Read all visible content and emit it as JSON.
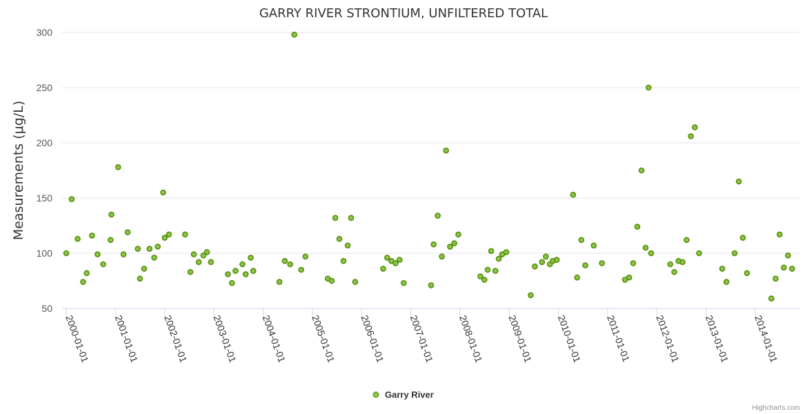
{
  "chart_data": {
    "type": "scatter",
    "title": "GARRY RIVER STRONTIUM, UNFILTERED TOTAL",
    "xlabel": "",
    "ylabel": "Measurements (μg/L)",
    "ylim": [
      50,
      300
    ],
    "yticks": [
      50,
      100,
      150,
      200,
      250,
      300
    ],
    "xticks": [
      "2000-01-01",
      "2001-01-01",
      "2002-01-01",
      "2003-01-01",
      "2004-01-01",
      "2005-01-01",
      "2006-01-01",
      "2007-01-01",
      "2008-01-01",
      "2009-01-01",
      "2010-01-01",
      "2011-01-01",
      "2012-01-01",
      "2013-01-01",
      "2014-01-01"
    ],
    "xlim": [
      "1999-12-01",
      "2014-11-30"
    ],
    "grid": "horizontal",
    "legend_position": "bottom-center",
    "series": [
      {
        "name": "Garry River",
        "color": "#8bc34a",
        "stroke": "#4f8a00",
        "points": [
          [
            "2000-01-01",
            100
          ],
          [
            "2000-02-10",
            149
          ],
          [
            "2000-03-25",
            113
          ],
          [
            "2000-05-05",
            74
          ],
          [
            "2000-06-01",
            82
          ],
          [
            "2000-07-10",
            116
          ],
          [
            "2000-08-20",
            99
          ],
          [
            "2000-10-01",
            90
          ],
          [
            "2000-11-25",
            112
          ],
          [
            "2000-12-01",
            135
          ],
          [
            "2001-01-20",
            178
          ],
          [
            "2001-03-01",
            99
          ],
          [
            "2001-04-01",
            119
          ],
          [
            "2001-06-15",
            104
          ],
          [
            "2001-07-01",
            77
          ],
          [
            "2001-08-01",
            86
          ],
          [
            "2001-09-10",
            104
          ],
          [
            "2001-10-15",
            96
          ],
          [
            "2001-11-10",
            106
          ],
          [
            "2001-12-20",
            155
          ],
          [
            "2002-01-01",
            114
          ],
          [
            "2002-02-01",
            117
          ],
          [
            "2002-06-01",
            117
          ],
          [
            "2002-07-10",
            83
          ],
          [
            "2002-08-05",
            99
          ],
          [
            "2002-09-10",
            92
          ],
          [
            "2002-10-15",
            98
          ],
          [
            "2002-11-10",
            101
          ],
          [
            "2002-12-10",
            92
          ],
          [
            "2003-04-15",
            81
          ],
          [
            "2003-05-15",
            73
          ],
          [
            "2003-06-10",
            84
          ],
          [
            "2003-08-01",
            90
          ],
          [
            "2003-08-25",
            81
          ],
          [
            "2003-10-01",
            96
          ],
          [
            "2003-10-20",
            84
          ],
          [
            "2004-05-01",
            74
          ],
          [
            "2004-06-10",
            93
          ],
          [
            "2004-07-20",
            90
          ],
          [
            "2004-08-20",
            298
          ],
          [
            "2004-10-10",
            85
          ],
          [
            "2004-11-10",
            97
          ],
          [
            "2005-04-25",
            77
          ],
          [
            "2005-05-25",
            75
          ],
          [
            "2005-06-20",
            132
          ],
          [
            "2005-07-20",
            113
          ],
          [
            "2005-08-20",
            93
          ],
          [
            "2005-09-20",
            107
          ],
          [
            "2005-10-15",
            132
          ],
          [
            "2005-11-15",
            74
          ],
          [
            "2006-06-10",
            86
          ],
          [
            "2006-07-10",
            96
          ],
          [
            "2006-08-10",
            93
          ],
          [
            "2006-09-10",
            91
          ],
          [
            "2006-10-10",
            94
          ],
          [
            "2006-11-10",
            73
          ],
          [
            "2007-06-01",
            71
          ],
          [
            "2007-06-20",
            108
          ],
          [
            "2007-07-20",
            134
          ],
          [
            "2007-08-20",
            97
          ],
          [
            "2007-09-20",
            193
          ],
          [
            "2007-10-20",
            106
          ],
          [
            "2007-11-20",
            109
          ],
          [
            "2007-12-20",
            117
          ],
          [
            "2008-06-01",
            79
          ],
          [
            "2008-07-01",
            76
          ],
          [
            "2008-07-25",
            85
          ],
          [
            "2008-08-20",
            102
          ],
          [
            "2008-09-20",
            84
          ],
          [
            "2008-10-15",
            95
          ],
          [
            "2008-11-10",
            99
          ],
          [
            "2008-12-10",
            101
          ],
          [
            "2009-06-10",
            62
          ],
          [
            "2009-07-10",
            88
          ],
          [
            "2009-09-01",
            92
          ],
          [
            "2009-09-30",
            97
          ],
          [
            "2009-10-30",
            90
          ],
          [
            "2009-11-20",
            93
          ],
          [
            "2009-12-20",
            94
          ],
          [
            "2010-04-20",
            153
          ],
          [
            "2010-05-20",
            78
          ],
          [
            "2010-06-20",
            112
          ],
          [
            "2010-07-20",
            89
          ],
          [
            "2010-09-20",
            107
          ],
          [
            "2010-11-20",
            91
          ],
          [
            "2011-05-10",
            76
          ],
          [
            "2011-06-10",
            78
          ],
          [
            "2011-07-10",
            91
          ],
          [
            "2011-08-10",
            124
          ],
          [
            "2011-09-10",
            175
          ],
          [
            "2011-10-10",
            105
          ],
          [
            "2011-11-01",
            250
          ],
          [
            "2011-11-20",
            100
          ],
          [
            "2012-04-10",
            90
          ],
          [
            "2012-05-10",
            83
          ],
          [
            "2012-06-10",
            93
          ],
          [
            "2012-07-10",
            92
          ],
          [
            "2012-08-10",
            112
          ],
          [
            "2012-09-10",
            206
          ],
          [
            "2012-10-10",
            214
          ],
          [
            "2012-11-10",
            100
          ],
          [
            "2013-05-01",
            86
          ],
          [
            "2013-06-01",
            74
          ],
          [
            "2013-08-01",
            100
          ],
          [
            "2013-09-01",
            165
          ],
          [
            "2013-10-01",
            114
          ],
          [
            "2013-11-01",
            82
          ],
          [
            "2014-05-01",
            59
          ],
          [
            "2014-06-01",
            77
          ],
          [
            "2014-07-01",
            117
          ],
          [
            "2014-08-01",
            87
          ],
          [
            "2014-09-01",
            98
          ],
          [
            "2014-10-01",
            86
          ]
        ]
      }
    ],
    "credits": "Highcharts.com"
  }
}
